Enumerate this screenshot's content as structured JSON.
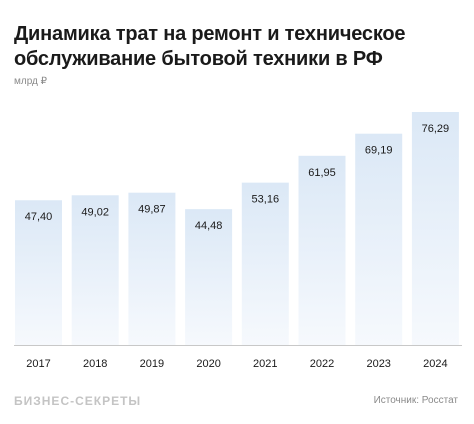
{
  "header": {
    "title": "Динамика трат на ремонт и техническое обслуживание бытовой техники в РФ",
    "unit": "млрд ₽"
  },
  "footer": {
    "brand": "БИЗНЕС-СЕКРЕТЫ",
    "source": "Источник: Росстат"
  },
  "colors": {
    "bar_top": "#dbe8f6",
    "bar_bottom": "#f6f9fd",
    "text": "#1a1a1a",
    "axis": "#c8c8c8"
  },
  "chart_data": {
    "type": "bar",
    "title": "Динамика трат на ремонт и техническое обслуживание бытовой техники в РФ",
    "ylabel": "млрд ₽",
    "xlabel": "",
    "categories": [
      "2017",
      "2018",
      "2019",
      "2020",
      "2021",
      "2022",
      "2023",
      "2024"
    ],
    "values": [
      47.4,
      49.02,
      49.87,
      44.48,
      53.16,
      61.95,
      69.19,
      76.29
    ],
    "value_labels": [
      "47,40",
      "49,02",
      "49,87",
      "44,48",
      "53,16",
      "61,95",
      "69,19",
      "76,29"
    ],
    "ylim": [
      0,
      76.29
    ],
    "grid": false,
    "legend": "none"
  }
}
